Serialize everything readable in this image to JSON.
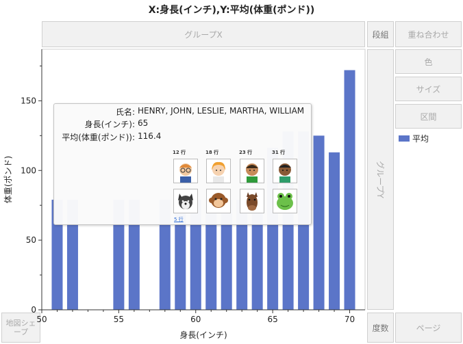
{
  "title": "X:身長(インチ),Y:平均(体重(ポンド))",
  "zones": {
    "group_x": "グループX",
    "group_y": "グループY",
    "wrap": "段組",
    "overlay": "重ね合わせ",
    "color": "色",
    "size": "サイズ",
    "interval": "区間",
    "freq": "度数",
    "page": "ページ",
    "map_shape": "地図シェープ"
  },
  "legend": {
    "label": "平均",
    "color": "#5b75c8"
  },
  "chart_data": {
    "type": "bar",
    "title": "X:身長(インチ),Y:平均(体重(ポンド))",
    "xlabel": "身長(インチ)",
    "ylabel": "体重(ポンド)",
    "xlim": [
      50,
      71
    ],
    "ylim": [
      0,
      187
    ],
    "x_ticks": [
      50,
      55,
      60,
      65,
      70
    ],
    "y_ticks": [
      0,
      50,
      100,
      150
    ],
    "x": [
      51,
      52,
      55,
      56,
      58,
      59,
      60,
      61,
      62,
      63,
      64,
      65,
      66,
      67,
      68,
      69,
      70
    ],
    "values": [
      79,
      79,
      79,
      79,
      79,
      79,
      79,
      79,
      79,
      79,
      79,
      116.4,
      128,
      128,
      125,
      113,
      172
    ],
    "series_name": "平均",
    "color": "#5b75c8",
    "grid": false
  },
  "tooltip": {
    "rows": [
      {
        "key": "氏名:",
        "value": "HENRY, JOHN, LESLIE, MARTHA, WILLIAM"
      },
      {
        "key": "身長(インチ):",
        "value": "65"
      },
      {
        "key": "平均(体重(ポンド)):",
        "value": "116.4"
      }
    ],
    "thumb_labels": [
      "12 行",
      "18 行",
      "23 行",
      "31 行"
    ],
    "thumb_icons": [
      "boy-glasses-icon",
      "girl-icon",
      "boy-icon",
      "boy-dark-icon",
      "dog-icon",
      "monkey-icon",
      "horse-icon",
      "frog-icon"
    ],
    "more_label": "5 行"
  }
}
